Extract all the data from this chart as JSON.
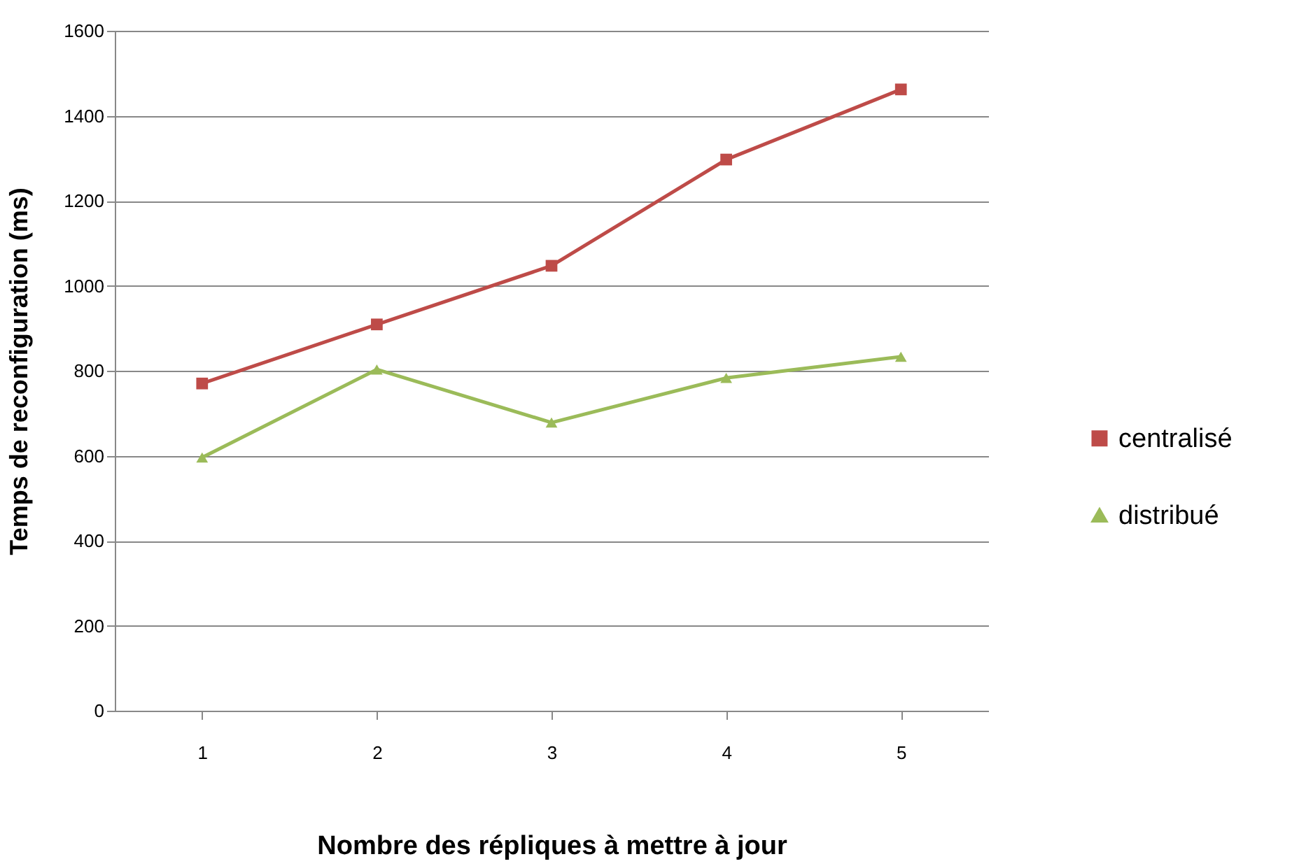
{
  "chart_data": {
    "type": "line",
    "xlabel": "Nombre des répliques à mettre à jour",
    "ylabel": "Temps de reconfiguration (ms)",
    "categories": [
      "1",
      "2",
      "3",
      "4",
      "5"
    ],
    "series": [
      {
        "name": "centralisé",
        "color": "#be4b48",
        "marker": "square",
        "values": [
          770,
          909,
          1047,
          1297,
          1462
        ]
      },
      {
        "name": "distribué",
        "color": "#9bbb59",
        "marker": "triangle",
        "values": [
          596,
          803,
          678,
          783,
          833
        ]
      }
    ],
    "ylim": [
      0,
      1600
    ],
    "yticks": [
      0,
      200,
      400,
      600,
      800,
      1000,
      1200,
      1400,
      1600
    ],
    "grid": "y",
    "legend": "right"
  }
}
